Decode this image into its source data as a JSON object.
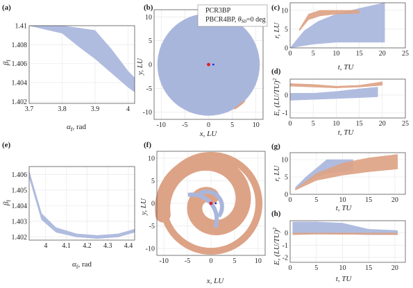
{
  "colors": {
    "pcr3bp": "#a9b6dc",
    "pbcr4bp": "#dda386",
    "earth": "#e0202c",
    "moon": "#1d2ad6",
    "axis": "#555555",
    "grid": "#e4e4e4"
  },
  "legend": {
    "line1": "PCR3BP",
    "line2_prefix": "PBCR4BP, ",
    "line2_theta": "θ",
    "line2_sub": "S0",
    "line2_suffix": "=0 deg"
  },
  "panels": {
    "a": {
      "label": "(a)",
      "xlabel_sym": "α",
      "xlabel_sub": "f",
      "xlabel_unit": ", rad",
      "ylabel_sym": "β",
      "ylabel_sub": "f",
      "xticks": [
        "3.7",
        "3.8",
        "3.9",
        "4"
      ],
      "yticks": [
        "1.41",
        "1.408",
        "1.406",
        "1.404",
        "1.402"
      ]
    },
    "b": {
      "label": "(b)",
      "xlabel": "x, LU",
      "ylabel": "y, LU",
      "xticks": [
        "-10",
        "-5",
        "0",
        "5",
        "10"
      ],
      "yticks": [
        "10",
        "5",
        "0",
        "-5",
        "-10"
      ]
    },
    "c": {
      "label": "(c)",
      "xlabel": "t, TU",
      "ylabel": "r, LU",
      "xticks": [
        "0",
        "5",
        "10",
        "15",
        "20",
        "25"
      ],
      "yticks": [
        "0",
        "5",
        "10"
      ]
    },
    "d": {
      "label": "(d)",
      "xlabel": "t, TU",
      "ylabel": "E, (LU/TU)",
      "ylabel_sup": "2",
      "xticks": [
        "0",
        "5",
        "10",
        "15",
        "20",
        "25"
      ],
      "yticks": [
        "0",
        "-1"
      ]
    },
    "e": {
      "label": "(e)",
      "xlabel_sym": "α",
      "xlabel_sub": "f",
      "xlabel_unit": ", rad",
      "ylabel_sym": "β",
      "ylabel_sub": "f",
      "xticks": [
        "4",
        "4.1",
        "4.2",
        "4.3",
        "4.4"
      ],
      "yticks": [
        "1.406",
        "1.405",
        "1.404",
        "1.403",
        "1.402"
      ]
    },
    "f": {
      "label": "(f)",
      "xlabel": "x, LU",
      "ylabel": "y, LU",
      "xticks": [
        "-10",
        "-5",
        "0",
        "5",
        "10"
      ],
      "yticks": [
        "10",
        "5",
        "0",
        "-5",
        "-10"
      ]
    },
    "g": {
      "label": "(g)",
      "xlabel": "t, TU",
      "ylabel": "r, LU",
      "xticks": [
        "0",
        "5",
        "10",
        "15",
        "20"
      ],
      "yticks": [
        "0",
        "5",
        "10"
      ]
    },
    "h": {
      "label": "(h)",
      "xlabel": "t, TU",
      "ylabel": "E, (LU/TU)",
      "ylabel_sup": "2",
      "xticks": [
        "0",
        "5",
        "10",
        "15",
        "20"
      ],
      "yticks": [
        "0",
        "-1",
        "-2"
      ]
    }
  },
  "chart_data": [
    {
      "panel": "a",
      "type": "area",
      "xlim": [
        3.7,
        4.02
      ],
      "ylim": [
        1.4018,
        1.41
      ],
      "series": [
        {
          "color": "pcr3bp",
          "upper": [
            [
              3.7,
              1.41
            ],
            [
              3.8,
              1.41
            ],
            [
              3.9,
              1.4095
            ],
            [
              3.95,
              1.4075
            ],
            [
              4.0,
              1.4052
            ],
            [
              4.02,
              1.4045
            ]
          ],
          "lower": [
            [
              3.7,
              1.41
            ],
            [
              3.8,
              1.4092
            ],
            [
              3.85,
              1.4078
            ],
            [
              3.9,
              1.4065
            ],
            [
              3.95,
              1.405
            ],
            [
              4.0,
              1.4035
            ],
            [
              4.02,
              1.403
            ]
          ]
        }
      ]
    },
    {
      "panel": "b",
      "type": "area",
      "xlim": [
        -11.5,
        11.5
      ],
      "ylim": [
        -11.5,
        11.5
      ],
      "earth": [
        0,
        0
      ],
      "moon": [
        1,
        0
      ],
      "series": [
        {
          "color": "pcr3bp",
          "shape": "disc",
          "radius": 10.8
        },
        {
          "color": "pbcr4bp",
          "shape": "edge-arc",
          "radius": 10.8,
          "from_deg": -60,
          "to_deg": -45
        }
      ]
    },
    {
      "panel": "c",
      "type": "area",
      "xlim": [
        0,
        25
      ],
      "ylim": [
        0,
        12
      ],
      "series": [
        {
          "color": "pcr3bp",
          "upper": [
            [
              0,
              0
            ],
            [
              3,
              4.5
            ],
            [
              6,
              7
            ],
            [
              10,
              9
            ],
            [
              15,
              10.5
            ],
            [
              20.5,
              12
            ]
          ],
          "lower": [
            [
              0,
              0
            ],
            [
              5,
              1
            ],
            [
              10,
              1.5
            ],
            [
              15,
              1.5
            ],
            [
              20.5,
              1.5
            ]
          ]
        },
        {
          "color": "pbcr4bp",
          "upper": [
            [
              2,
              5
            ],
            [
              4,
              9
            ],
            [
              6.5,
              10
            ],
            [
              10,
              10
            ],
            [
              15,
              10
            ]
          ],
          "lower": [
            [
              2,
              4.5
            ],
            [
              4,
              7.5
            ],
            [
              6.5,
              8.5
            ],
            [
              10,
              9
            ],
            [
              15,
              9.2
            ]
          ]
        }
      ]
    },
    {
      "panel": "d",
      "type": "area",
      "xlim": [
        0,
        25
      ],
      "ylim": [
        -1.3,
        0.9
      ],
      "series": [
        {
          "color": "pcr3bp",
          "upper": [
            [
              0,
              0.1
            ],
            [
              5,
              0.1
            ],
            [
              10,
              0.2
            ],
            [
              15,
              0.35
            ],
            [
              19,
              0.45
            ]
          ],
          "lower": [
            [
              0,
              -0.3
            ],
            [
              5,
              -0.25
            ],
            [
              10,
              -0.2
            ],
            [
              15,
              -0.15
            ],
            [
              19,
              -0.1
            ]
          ]
        },
        {
          "color": "pbcr4bp",
          "upper": [
            [
              0,
              0.65
            ],
            [
              5,
              0.6
            ],
            [
              10,
              0.5
            ],
            [
              15,
              0.55
            ],
            [
              20,
              0.75
            ]
          ],
          "lower": [
            [
              0,
              0.5
            ],
            [
              5,
              0.45
            ],
            [
              10,
              0.4
            ],
            [
              15,
              0.45
            ],
            [
              20,
              0.55
            ]
          ]
        }
      ]
    },
    {
      "panel": "e",
      "type": "area",
      "xlim": [
        3.92,
        4.43
      ],
      "ylim": [
        1.4018,
        1.4065
      ],
      "series": [
        {
          "color": "pcr3bp",
          "upper": [
            [
              3.92,
              1.4062
            ],
            [
              3.98,
              1.4035
            ],
            [
              4.05,
              1.4026
            ],
            [
              4.15,
              1.4022
            ],
            [
              4.25,
              1.4021
            ],
            [
              4.35,
              1.4022
            ],
            [
              4.43,
              1.4025
            ]
          ],
          "lower": [
            [
              3.92,
              1.4058
            ],
            [
              3.98,
              1.4031
            ],
            [
              4.05,
              1.4023
            ],
            [
              4.15,
              1.402
            ],
            [
              4.25,
              1.4019
            ],
            [
              4.35,
              1.402
            ],
            [
              4.43,
              1.4023
            ]
          ]
        }
      ]
    },
    {
      "panel": "f",
      "type": "area",
      "xlim": [
        -11.5,
        11.5
      ],
      "ylim": [
        -11.5,
        11.5
      ],
      "earth": [
        0,
        0
      ],
      "moon": [
        1,
        0
      ],
      "series": [
        {
          "color": "pbcr4bp",
          "shape": "spiral",
          "rmax": 10.5
        },
        {
          "color": "pcr3bp",
          "shape": "inner-arcs"
        }
      ]
    },
    {
      "panel": "g",
      "type": "area",
      "xlim": [
        0,
        22
      ],
      "ylim": [
        0,
        12
      ],
      "series": [
        {
          "color": "pcr3bp",
          "upper": [
            [
              1,
              2
            ],
            [
              3,
              5
            ],
            [
              5,
              7.5
            ],
            [
              7,
              10
            ],
            [
              12,
              10
            ]
          ],
          "lower": [
            [
              1,
              1.5
            ],
            [
              3,
              3.5
            ],
            [
              5,
              5
            ],
            [
              7,
              6
            ],
            [
              12,
              7
            ]
          ]
        },
        {
          "color": "pbcr4bp",
          "upper": [
            [
              1,
              1.5
            ],
            [
              5,
              6
            ],
            [
              10,
              9
            ],
            [
              15,
              10.5
            ],
            [
              20.5,
              11.5
            ]
          ],
          "lower": [
            [
              1,
              1.2
            ],
            [
              5,
              4
            ],
            [
              10,
              5.5
            ],
            [
              15,
              6.5
            ],
            [
              20.5,
              7.3
            ]
          ]
        }
      ]
    },
    {
      "panel": "h",
      "type": "area",
      "xlim": [
        0,
        22
      ],
      "ylim": [
        -2.4,
        1.0
      ],
      "series": [
        {
          "color": "pcr3bp",
          "upper": [
            [
              0.5,
              0.9
            ],
            [
              5,
              0.9
            ],
            [
              10,
              0.8
            ],
            [
              15,
              0.3
            ],
            [
              20.5,
              0.2
            ]
          ],
          "lower": [
            [
              0.5,
              -0.1
            ],
            [
              5,
              -0.1
            ],
            [
              10,
              -0.1
            ],
            [
              15,
              -0.15
            ],
            [
              20.5,
              -0.15
            ]
          ]
        },
        {
          "color": "pbcr4bp",
          "upper": [
            [
              0.5,
              0.0
            ],
            [
              5,
              0.0
            ],
            [
              10,
              0.0
            ],
            [
              15,
              0.0
            ],
            [
              20.5,
              0.0
            ]
          ],
          "lower": [
            [
              0.5,
              -0.15
            ],
            [
              5,
              -0.1
            ],
            [
              10,
              -0.12
            ],
            [
              15,
              -0.12
            ],
            [
              20.5,
              -0.15
            ]
          ]
        }
      ]
    }
  ]
}
